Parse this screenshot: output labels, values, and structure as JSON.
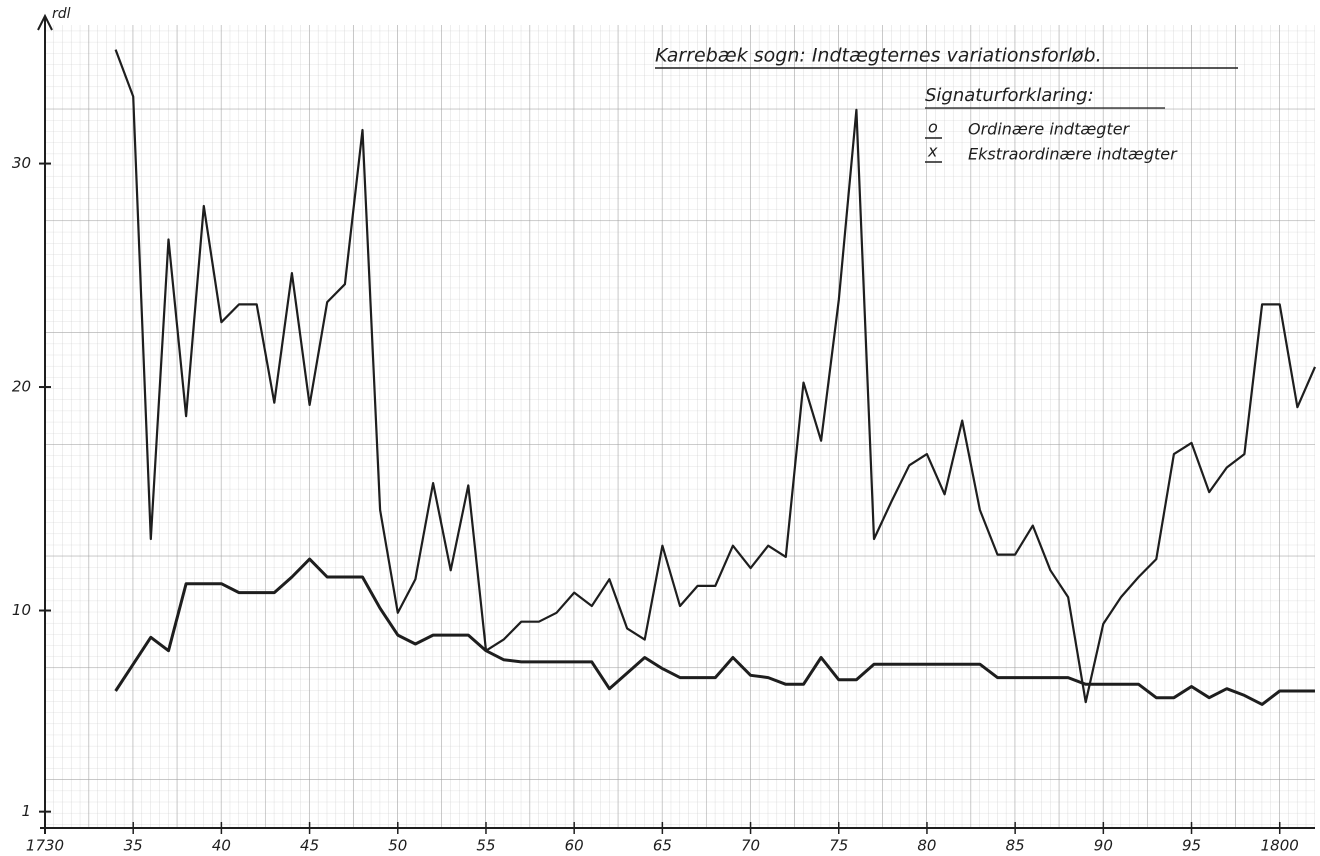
{
  "chart_data": {
    "type": "line",
    "title": "Karrebæk sogn: Indtægternes variationsforløb.",
    "y_label": "rdl",
    "legend_title": "Signaturforklaring:",
    "x": [
      1734,
      1735,
      1736,
      1737,
      1738,
      1739,
      1740,
      1741,
      1742,
      1743,
      1744,
      1745,
      1746,
      1747,
      1748,
      1749,
      1750,
      1751,
      1752,
      1753,
      1754,
      1755,
      1756,
      1757,
      1758,
      1759,
      1760,
      1761,
      1762,
      1763,
      1764,
      1765,
      1766,
      1767,
      1768,
      1769,
      1770,
      1771,
      1772,
      1773,
      1774,
      1775,
      1776,
      1777,
      1778,
      1779,
      1780,
      1781,
      1782,
      1783,
      1784,
      1785,
      1786,
      1787,
      1788,
      1789,
      1790,
      1791,
      1792,
      1793,
      1794,
      1795,
      1796,
      1797,
      1798,
      1799,
      1800,
      1801,
      1802
    ],
    "series": [
      {
        "name": "Ordinære indtægter",
        "marker": "o",
        "color": "#1e1e1e",
        "values": [
          6.4,
          7.6,
          8.8,
          8.2,
          11.2,
          11.2,
          11.2,
          10.8,
          10.8,
          10.8,
          11.5,
          12.3,
          11.5,
          11.5,
          11.5,
          10.1,
          8.9,
          8.5,
          8.9,
          8.9,
          8.9,
          8.2,
          7.8,
          7.7,
          7.7,
          7.7,
          7.7,
          7.7,
          6.5,
          7.2,
          7.9,
          7.4,
          7.0,
          7.0,
          7.0,
          7.9,
          7.1,
          7.0,
          6.7,
          6.7,
          7.9,
          6.9,
          6.9,
          7.6,
          7.6,
          7.6,
          7.6,
          7.6,
          7.6,
          7.6,
          7.0,
          7.0,
          7.0,
          7.0,
          7.0,
          6.7,
          6.7,
          6.7,
          6.7,
          6.1,
          6.1,
          6.6,
          6.1,
          6.5,
          6.2,
          5.8,
          6.4,
          6.4,
          6.4
        ]
      },
      {
        "name": "Ekstraordinære indtægter",
        "marker": "x",
        "color": "#1e1e1e",
        "values": [
          35.1,
          33,
          13.2,
          26.6,
          18.7,
          28.1,
          22.9,
          23.7,
          23.7,
          19.3,
          25.1,
          19.2,
          23.8,
          24.6,
          31.5,
          14.5,
          9.9,
          11.4,
          15.7,
          11.8,
          15.6,
          8.2,
          8.7,
          9.5,
          9.5,
          9.9,
          10.8,
          10.2,
          11.4,
          9.2,
          8.7,
          12.9,
          10.2,
          11.1,
          11.1,
          12.9,
          11.9,
          12.9,
          12.4,
          20.2,
          17.6,
          23.9,
          32.4,
          13.2,
          14.9,
          16.5,
          17.0,
          15.2,
          18.5,
          14.5,
          12.5,
          12.5,
          13.8,
          11.8,
          10.6,
          5.9,
          9.4,
          10.6,
          11.5,
          12.3,
          17.0,
          17.5,
          15.3,
          16.4,
          17.0,
          23.7,
          23.7,
          19.1,
          20.9
        ]
      }
    ],
    "xlim": [
      1730,
      1802
    ],
    "ylim": [
      0,
      36.2
    ],
    "xticks": [
      {
        "value": 1730,
        "label": "1730"
      },
      {
        "value": 1735,
        "label": "35"
      },
      {
        "value": 1740,
        "label": "40"
      },
      {
        "value": 1745,
        "label": "45"
      },
      {
        "value": 1750,
        "label": "50"
      },
      {
        "value": 1755,
        "label": "55"
      },
      {
        "value": 1760,
        "label": "60"
      },
      {
        "value": 1765,
        "label": "65"
      },
      {
        "value": 1770,
        "label": "70"
      },
      {
        "value": 1775,
        "label": "75"
      },
      {
        "value": 1780,
        "label": "80"
      },
      {
        "value": 1785,
        "label": "85"
      },
      {
        "value": 1790,
        "label": "90"
      },
      {
        "value": 1795,
        "label": "95"
      },
      {
        "value": 1800,
        "label": "1800"
      }
    ],
    "yticks": [
      1,
      10,
      20,
      30
    ]
  }
}
